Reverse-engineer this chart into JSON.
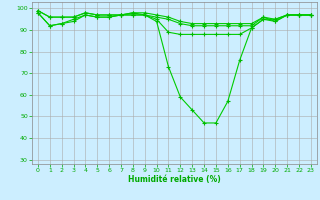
{
  "title": "",
  "xlabel": "Humidité relative (%)",
  "background_color": "#cceeff",
  "grid_color": "#aaaaaa",
  "line_color": "#00cc00",
  "marker_color": "#00bb00",
  "xlim": [
    -0.5,
    23.5
  ],
  "ylim": [
    28,
    103
  ],
  "yticks": [
    30,
    40,
    50,
    60,
    70,
    80,
    90,
    100
  ],
  "xticks": [
    0,
    1,
    2,
    3,
    4,
    5,
    6,
    7,
    8,
    9,
    10,
    11,
    12,
    13,
    14,
    15,
    16,
    17,
    18,
    19,
    20,
    21,
    22,
    23
  ],
  "series": [
    [
      98,
      92,
      93,
      94,
      97,
      96,
      96,
      97,
      97,
      97,
      94,
      73,
      59,
      53,
      47,
      47,
      57,
      76,
      91,
      95,
      94,
      97,
      97,
      97
    ],
    [
      98,
      92,
      93,
      95,
      97,
      96,
      96,
      97,
      97,
      97,
      95,
      89,
      88,
      88,
      88,
      88,
      88,
      88,
      91,
      95,
      95,
      97,
      97,
      97
    ],
    [
      99,
      96,
      96,
      96,
      98,
      97,
      97,
      97,
      98,
      97,
      96,
      95,
      93,
      92,
      92,
      92,
      92,
      92,
      92,
      96,
      94,
      97,
      97,
      97
    ],
    [
      99,
      96,
      96,
      96,
      98,
      97,
      97,
      97,
      98,
      98,
      97,
      96,
      94,
      93,
      93,
      93,
      93,
      93,
      93,
      96,
      95,
      97,
      97,
      97
    ]
  ]
}
